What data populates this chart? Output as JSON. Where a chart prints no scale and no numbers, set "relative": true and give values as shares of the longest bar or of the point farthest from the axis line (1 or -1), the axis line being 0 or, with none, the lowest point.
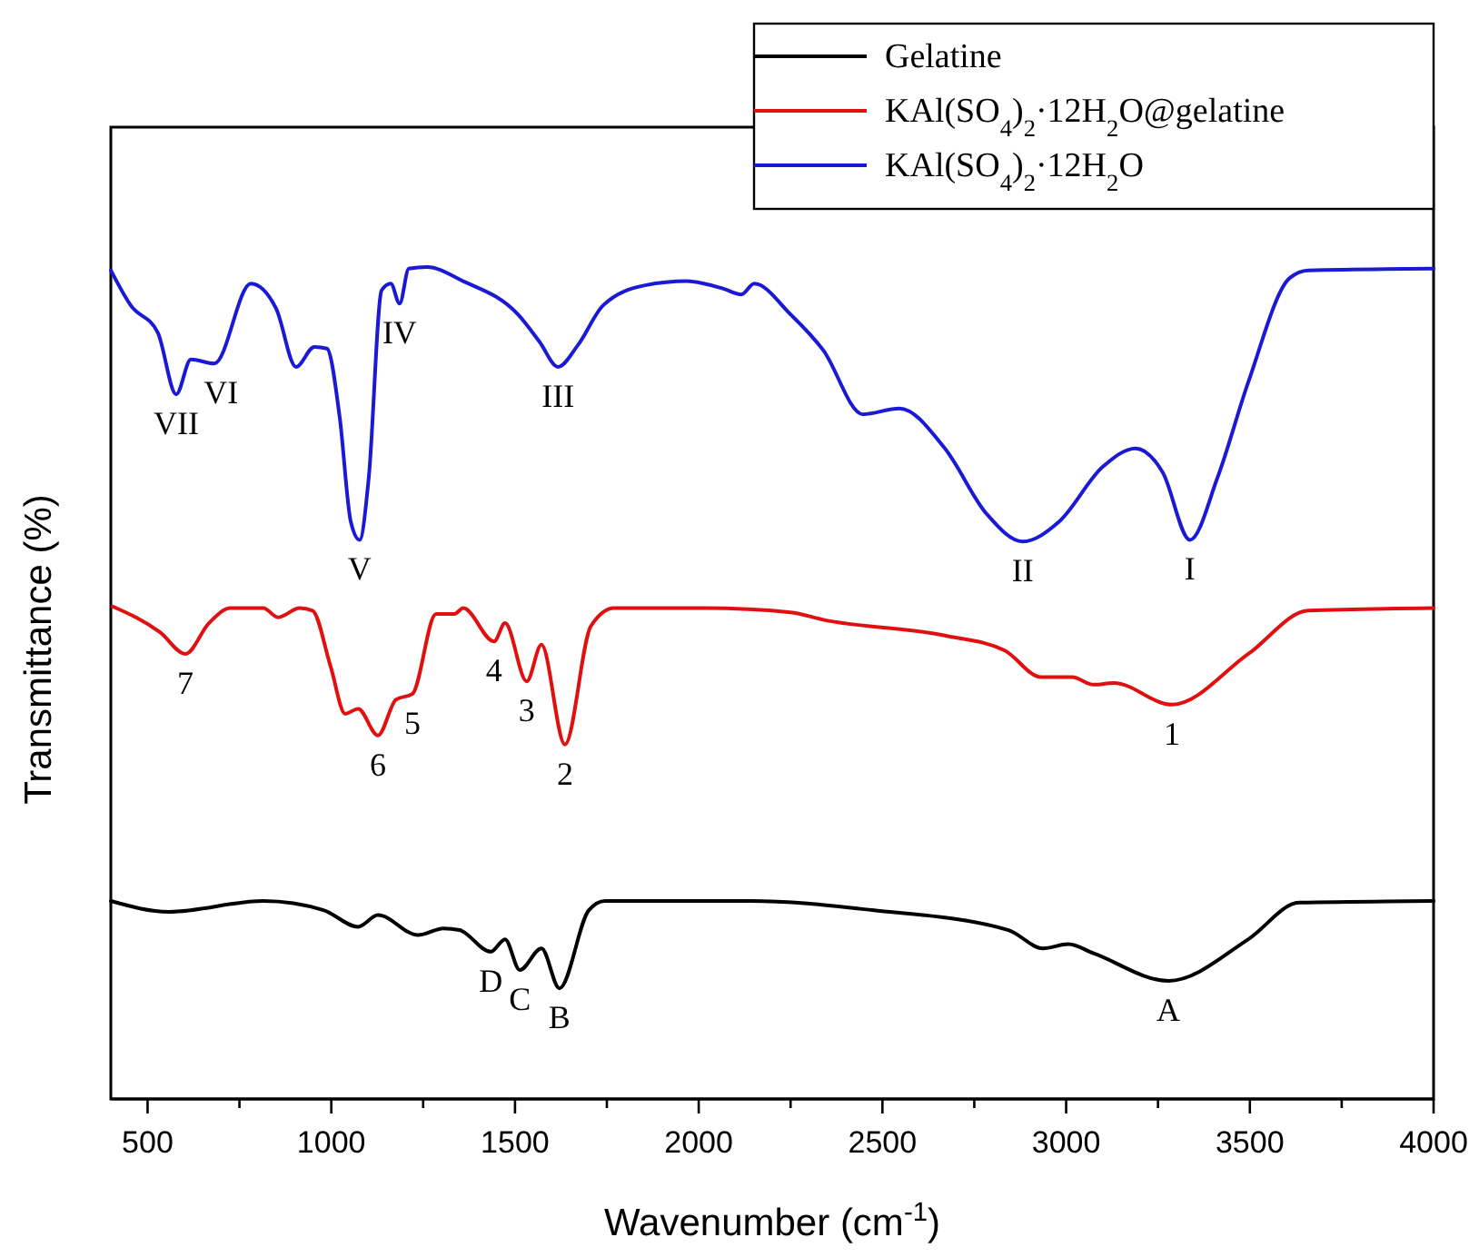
{
  "chart_data": {
    "type": "line",
    "relative": true,
    "xlabel": "Wavenumber (cm$^{-1}$)",
    "ylabel": "Transmittance (%)",
    "xlim": [
      400,
      4000
    ],
    "xticks": [
      500,
      {
        "value": 750,
        "label": null
      },
      1000,
      {
        "value": 1250,
        "label": null
      },
      1500,
      {
        "value": 1750,
        "label": null
      },
      2000,
      {
        "value": 2250,
        "label": null
      },
      2500,
      {
        "value": 2750,
        "label": null
      },
      3000,
      {
        "value": 3250,
        "label": null
      },
      3500,
      {
        "value": 3750,
        "label": null
      },
      4000
    ],
    "legend": "top right",
    "grid": false,
    "series": [
      {
        "name": "Gelatine",
        "color": "#000000",
        "x": [
          400,
          558,
          815,
          979,
          1073,
          1127,
          1236,
          1305,
          1349,
          1434,
          1473,
          1513,
          1572,
          1621,
          1701,
          1745,
          2141,
          2472,
          2843,
          2937,
          3006,
          3075,
          3278,
          3496,
          3634,
          4000
        ],
        "values": [
          0.238,
          0.225,
          0.238,
          0.227,
          0.207,
          0.221,
          0.197,
          0.205,
          0.203,
          0.177,
          0.192,
          0.155,
          0.181,
          0.133,
          0.227,
          0.238,
          0.238,
          0.227,
          0.203,
          0.181,
          0.186,
          0.175,
          0.142,
          0.192,
          0.236,
          0.238
        ]
      },
      {
        "name": "KAl(SO$_{4}$)$_{2}$·12H$_{2}$O@gelatine",
        "color": "#e01010",
        "x": [
          405,
          534,
          603,
          667,
          726,
          815,
          855,
          914,
          949,
          998,
          1038,
          1073,
          1127,
          1176,
          1221,
          1285,
          1335,
          1359,
          1443,
          1473,
          1532,
          1572,
          1636,
          1706,
          1770,
          2017,
          2250,
          2339,
          2670,
          2833,
          2932,
          3016,
          3075,
          3130,
          3288,
          3496,
          3659,
          4000
        ],
        "values": [
          0.592,
          0.561,
          0.535,
          0.572,
          0.59,
          0.59,
          0.579,
          0.59,
          0.587,
          0.52,
          0.463,
          0.469,
          0.437,
          0.48,
          0.487,
          0.583,
          0.583,
          0.59,
          0.55,
          0.572,
          0.502,
          0.546,
          0.426,
          0.568,
          0.59,
          0.59,
          0.585,
          0.576,
          0.557,
          0.539,
          0.507,
          0.507,
          0.498,
          0.5,
          0.474,
          0.535,
          0.587,
          0.59
        ]
      },
      {
        "name": "KAl(SO$_{4}$)$_{2}$·12H$_{2}$O",
        "color": "#1a1ad6",
        "x": [
          400,
          454,
          528,
          578,
          618,
          682,
          781,
          850,
          904,
          954,
          988,
          1023,
          1053,
          1077,
          1102,
          1137,
          1162,
          1186,
          1211,
          1260,
          1359,
          1508,
          1567,
          1617,
          1671,
          1740,
          1854,
          1968,
          2067,
          2116,
          2151,
          2250,
          2339,
          2447,
          2546,
          2670,
          2784,
          2882,
          2981,
          3100,
          3189,
          3263,
          3337,
          3412,
          3496,
          3609,
          3659,
          4000
        ],
        "values": [
          0.996,
          0.954,
          0.921,
          0.847,
          0.889,
          0.884,
          0.98,
          0.95,
          0.88,
          0.904,
          0.902,
          0.819,
          0.694,
          0.672,
          0.747,
          0.972,
          0.98,
          0.956,
          0.998,
          1,
          0.983,
          0.943,
          0.91,
          0.88,
          0.906,
          0.954,
          0.978,
          0.983,
          0.974,
          0.967,
          0.98,
          0.943,
          0.9,
          0.823,
          0.83,
          0.782,
          0.703,
          0.67,
          0.694,
          0.76,
          0.782,
          0.753,
          0.672,
          0.747,
          0.862,
          0.987,
          0.996,
          0.998
        ]
      }
    ],
    "annotations": [
      {
        "text": "VII",
        "x": 578,
        "y": 0.847
      },
      {
        "text": "VI",
        "x": 700,
        "y": 0.884
      },
      {
        "text": "V",
        "x": 1077,
        "y": 0.672
      },
      {
        "text": "IV",
        "x": 1186,
        "y": 0.956
      },
      {
        "text": "III",
        "x": 1617,
        "y": 0.88
      },
      {
        "text": "II",
        "x": 2882,
        "y": 0.67
      },
      {
        "text": "I",
        "x": 3337,
        "y": 0.672
      },
      {
        "text": "7",
        "x": 603,
        "y": 0.535
      },
      {
        "text": "6",
        "x": 1127,
        "y": 0.437
      },
      {
        "text": "5",
        "x": 1221,
        "y": 0.487
      },
      {
        "text": "4",
        "x": 1443,
        "y": 0.55
      },
      {
        "text": "3",
        "x": 1532,
        "y": 0.502
      },
      {
        "text": "2",
        "x": 1636,
        "y": 0.426
      },
      {
        "text": "1",
        "x": 3288,
        "y": 0.474
      },
      {
        "text": "D",
        "x": 1434,
        "y": 0.177
      },
      {
        "text": "C",
        "x": 1513,
        "y": 0.155
      },
      {
        "text": "B",
        "x": 1621,
        "y": 0.133
      },
      {
        "text": "A",
        "x": 3278,
        "y": 0.142
      }
    ]
  }
}
